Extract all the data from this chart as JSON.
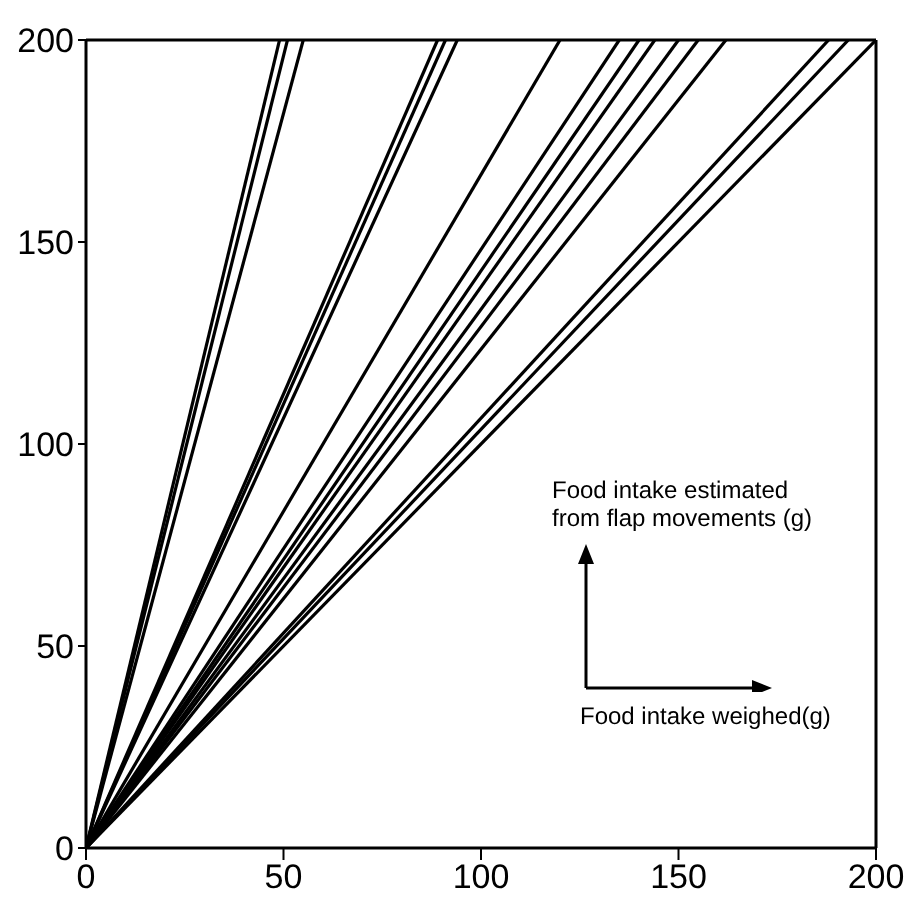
{
  "chart_data": {
    "type": "line",
    "xlim": [
      0,
      200
    ],
    "ylim": [
      0,
      200
    ],
    "xticks": [
      0,
      50,
      100,
      150,
      200
    ],
    "yticks": [
      0,
      50,
      100,
      150,
      200
    ],
    "marker": "none",
    "line_style": "solid",
    "annotations": [
      "Food intake estimated\nfrom flap movements (g)",
      "Food intake weighed(g)"
    ],
    "series": [
      {
        "color": "#000000",
        "x": [
          0,
          49
        ],
        "values": [
          0,
          200
        ]
      },
      {
        "color": "#000000",
        "x": [
          0,
          51
        ],
        "values": [
          0,
          200
        ]
      },
      {
        "color": "#000000",
        "x": [
          0,
          55
        ],
        "values": [
          0,
          200
        ]
      },
      {
        "color": "#000000",
        "x": [
          0,
          89
        ],
        "values": [
          0,
          200
        ]
      },
      {
        "color": "#000000",
        "x": [
          0,
          91
        ],
        "values": [
          0,
          200
        ]
      },
      {
        "color": "#000000",
        "x": [
          0,
          94
        ],
        "values": [
          0,
          200
        ]
      },
      {
        "color": "#000000",
        "x": [
          0,
          120
        ],
        "values": [
          0,
          200
        ]
      },
      {
        "color": "#000000",
        "x": [
          0,
          135
        ],
        "values": [
          0,
          200
        ]
      },
      {
        "color": "#000000",
        "x": [
          0,
          140
        ],
        "values": [
          0,
          200
        ]
      },
      {
        "color": "#000000",
        "x": [
          0,
          144
        ],
        "values": [
          0,
          200
        ]
      },
      {
        "color": "#000000",
        "x": [
          0,
          150
        ],
        "values": [
          0,
          200
        ]
      },
      {
        "color": "#000000",
        "x": [
          0,
          155
        ],
        "values": [
          0,
          200
        ]
      },
      {
        "color": "#000000",
        "x": [
          0,
          162
        ],
        "values": [
          0,
          200
        ]
      },
      {
        "color": "#000000",
        "x": [
          0,
          188
        ],
        "values": [
          0,
          200
        ]
      },
      {
        "color": "#000000",
        "x": [
          0,
          193
        ],
        "values": [
          0,
          200
        ]
      },
      {
        "color": "#000000",
        "x": [
          0,
          200
        ],
        "values": [
          0,
          200
        ]
      }
    ]
  }
}
